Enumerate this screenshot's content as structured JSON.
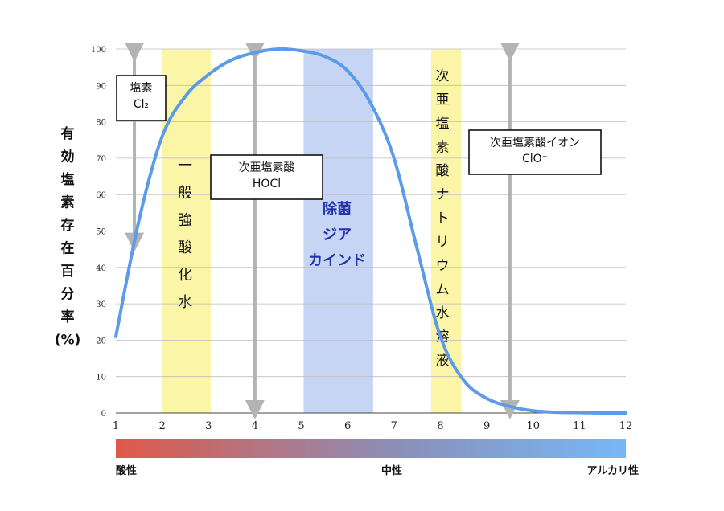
{
  "chart_data": {
    "type": "line",
    "ylabel": "有効塩素存在百分率(%)",
    "xlim": [
      1,
      12
    ],
    "ylim": [
      0,
      100
    ],
    "x_ticks": [
      "1",
      "2",
      "3",
      "4",
      "5",
      "6",
      "7",
      "8",
      "9",
      "10",
      "11",
      "12"
    ],
    "y_ticks": [
      "0",
      "10",
      "20",
      "30",
      "40",
      "50",
      "60",
      "70",
      "80",
      "90",
      "100"
    ],
    "grid": true,
    "series": [
      {
        "color": "#5b9be8",
        "x": [
          1.0,
          1.5,
          2.0,
          2.5,
          3.0,
          3.5,
          4.0,
          4.5,
          5.0,
          5.5,
          6.0,
          6.5,
          7.0,
          7.5,
          8.0,
          8.5,
          9.0,
          9.5,
          10.0,
          10.5,
          11.0,
          11.5,
          12.0
        ],
        "y": [
          21,
          53,
          76,
          87,
          93,
          97,
          99,
          100,
          99.5,
          98,
          94,
          85,
          70,
          45,
          21,
          9,
          4,
          1.8,
          0.6,
          0.2,
          0.1,
          0,
          0
        ]
      }
    ],
    "bands": [
      {
        "from": 2.0,
        "to": 3.05,
        "color": "#fbf5a8",
        "label": "一般強酸化水"
      },
      {
        "from": 5.05,
        "to": 6.55,
        "color": "#c7d5f5",
        "label": "除菌\nジア\nカインド"
      },
      {
        "from": 7.8,
        "to": 8.45,
        "color": "#fbf5a8",
        "label": "次亜塩素酸ナトリウム水溶液"
      }
    ],
    "arrows": [
      {
        "x": 1.4,
        "from": 100,
        "to": 46
      },
      {
        "x": 4.0,
        "from": 100,
        "to": 0
      },
      {
        "x": 9.5,
        "from": 100,
        "to": 0
      }
    ],
    "annotations": [
      {
        "text": "塩素\nCl₂"
      },
      {
        "text": "次亜塩素酸\nHOCl"
      },
      {
        "text": "次亜塩素酸イオン\nClO⁻"
      }
    ],
    "scale": {
      "colors": [
        "#e0584a",
        "#8b8fb8",
        "#77b8f8"
      ],
      "labels": {
        "left": "酸性",
        "center": "中性",
        "right": "アルカリ性"
      }
    }
  }
}
